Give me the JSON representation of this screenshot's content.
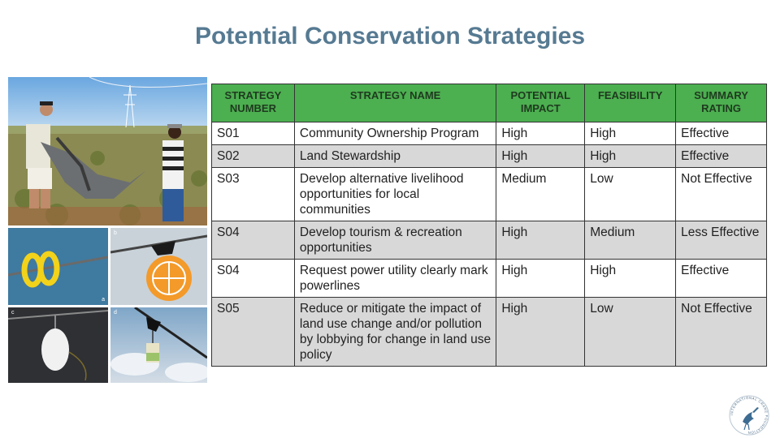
{
  "slide": {
    "title": "Potential Conservation Strategies"
  },
  "photos": {
    "a_letter": "a",
    "b_letter": "b",
    "c_letter": "c",
    "d_letter": "d"
  },
  "table": {
    "headers": {
      "number": "STRATEGY NUMBER",
      "name": "STRATEGY NAME",
      "impact": "POTENTIAL IMPACT",
      "feasibility": "FEASIBILITY",
      "rating": "SUMMARY RATING"
    },
    "rows": [
      {
        "number": "S01",
        "name": "Community Ownership Program",
        "impact": "High",
        "feasibility": "High",
        "rating": "Effective"
      },
      {
        "number": "S02",
        "name": "Land Stewardship",
        "impact": "High",
        "feasibility": "High",
        "rating": "Effective"
      },
      {
        "number": "S03",
        "name": "Develop alternative livelihood opportunities for local communities",
        "impact": "Medium",
        "feasibility": "Low",
        "rating": "Not Effective"
      },
      {
        "number": "S04",
        "name": "Develop tourism & recreation opportunities",
        "impact": "High",
        "feasibility": "Medium",
        "rating": "Less Effective"
      },
      {
        "number": "S04",
        "name": "Request power utility clearly mark powerlines",
        "impact": "High",
        "feasibility": "High",
        "rating": "Effective"
      },
      {
        "number": "S05",
        "name": "Reduce or mitigate the impact of land use change and/or pollution by lobbying for change in land use policy",
        "impact": "High",
        "feasibility": "Low",
        "rating": "Not Effective"
      }
    ]
  },
  "logo": {
    "text": "INTERNATIONAL CRANE FOUNDATION",
    "icon": "crane-icon"
  },
  "colors": {
    "title": "#567a92",
    "header_bg": "#4caf50",
    "alt_row_bg": "#d8d8d8"
  }
}
